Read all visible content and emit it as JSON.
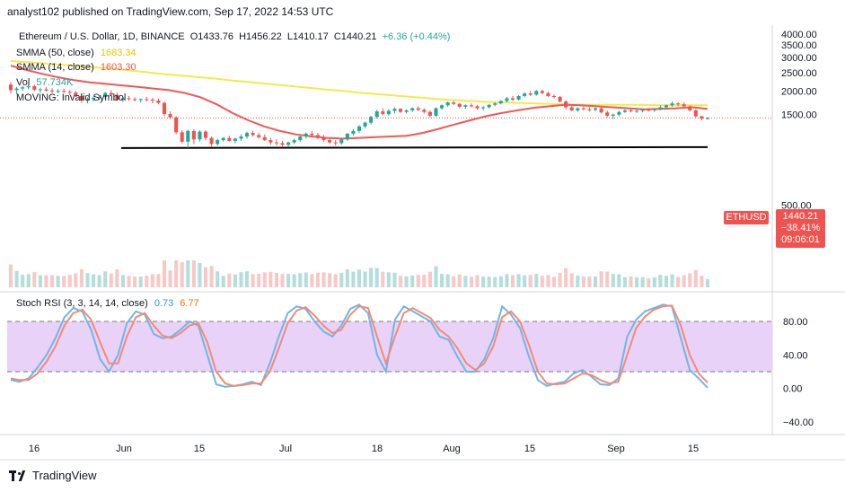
{
  "header": {
    "publisher": "analyst102 published on TradingView.com, Sep 17, 2022 14:53 UTC"
  },
  "legend": {
    "symbol": "Ethereum / U.S. Dollar, 1D, BINANCE",
    "open": "O1433.76",
    "high": "H1456.22",
    "low": "L1410.17",
    "close": "C1440.21",
    "change": "+6.36 (+0.44%)",
    "sma50_label": "SMMA (50, close)",
    "sma50_value": "1683.34",
    "sma14_label": "SMMA (14, close)",
    "sma14_value": "1603.30",
    "vol_label": "Vol",
    "vol_value": "57.734K",
    "moving_label": "MOVING: Invalid Symbol"
  },
  "price_tag": {
    "symbol": "ETHUSD",
    "price": "1440.21",
    "pct": "−38.41%",
    "timer": "09:06:01"
  },
  "stoch_legend": {
    "label": "Stoch RSI (3, 3, 14, 14, close)",
    "k": "0.73",
    "d": "6.77"
  },
  "footer": {
    "brand": "TradingView"
  },
  "colors": {
    "up": "#26a69a",
    "down": "#ef5350",
    "sma50": "#f5e94a",
    "sma14": "#f05858",
    "stoch_k": "#6fb6e8",
    "stoch_d": "#f28b76",
    "band": "#e9d2f7",
    "support": "#000000"
  },
  "chart_data": [
    {
      "type": "candlestick",
      "title": "Ethereum / U.S. Dollar, 1D, BINANCE",
      "x_tick_labels": [
        "16",
        "Jun",
        "15",
        "Jul",
        "18",
        "Aug",
        "15",
        "Sep",
        "15"
      ],
      "y_tick_labels": [
        "4000.00",
        "3500.00",
        "3000.00",
        "2500.00",
        "2000.00",
        "1500.00",
        "500.00"
      ],
      "ylim": [
        180,
        4450
      ],
      "y_scale": "log",
      "grid": false,
      "candles": [
        [
          2160,
          2230,
          1940,
          2020
        ],
        [
          2020,
          2100,
          1920,
          2060
        ],
        [
          2060,
          2130,
          2000,
          2090
        ],
        [
          2090,
          2180,
          2040,
          2120
        ],
        [
          2120,
          2160,
          1990,
          2030
        ],
        [
          2030,
          2080,
          1960,
          2040
        ],
        [
          2040,
          2100,
          1980,
          2010
        ],
        [
          2010,
          2070,
          1950,
          1990
        ],
        [
          1990,
          2050,
          1940,
          2000
        ],
        [
          2000,
          2060,
          1950,
          1980
        ],
        [
          1980,
          2020,
          1900,
          1960
        ],
        [
          1960,
          2000,
          1860,
          1880
        ],
        [
          1880,
          1920,
          1730,
          1780
        ],
        [
          1780,
          1850,
          1720,
          1810
        ],
        [
          1810,
          1880,
          1760,
          1840
        ],
        [
          1840,
          1900,
          1790,
          1860
        ],
        [
          1860,
          1980,
          1820,
          1950
        ],
        [
          1950,
          2020,
          1880,
          1910
        ],
        [
          1910,
          1960,
          1770,
          1800
        ],
        [
          1800,
          1860,
          1750,
          1830
        ],
        [
          1830,
          1880,
          1780,
          1810
        ],
        [
          1810,
          1850,
          1760,
          1790
        ],
        [
          1790,
          1830,
          1740,
          1810
        ],
        [
          1810,
          1860,
          1760,
          1800
        ],
        [
          1800,
          1840,
          1720,
          1780
        ],
        [
          1780,
          1820,
          1700,
          1730
        ],
        [
          1730,
          1760,
          1470,
          1510
        ],
        [
          1510,
          1560,
          1420,
          1450
        ],
        [
          1450,
          1470,
          1180,
          1210
        ],
        [
          1210,
          1240,
          1060,
          1080
        ],
        [
          1080,
          1250,
          1000,
          1230
        ],
        [
          1230,
          1250,
          1050,
          1110
        ],
        [
          1110,
          1240,
          1080,
          1220
        ],
        [
          1220,
          1240,
          1100,
          1130
        ],
        [
          1130,
          1150,
          1010,
          1050
        ],
        [
          1050,
          1120,
          1030,
          1100
        ],
        [
          1100,
          1140,
          1080,
          1130
        ],
        [
          1130,
          1160,
          1080,
          1090
        ],
        [
          1090,
          1130,
          1060,
          1120
        ],
        [
          1120,
          1180,
          1090,
          1150
        ],
        [
          1150,
          1220,
          1120,
          1200
        ],
        [
          1200,
          1230,
          1150,
          1170
        ],
        [
          1170,
          1200,
          1120,
          1140
        ],
        [
          1140,
          1180,
          1090,
          1100
        ],
        [
          1100,
          1130,
          1040,
          1070
        ],
        [
          1070,
          1110,
          1030,
          1060
        ],
        [
          1060,
          1090,
          1020,
          1040
        ],
        [
          1040,
          1080,
          1010,
          1070
        ],
        [
          1070,
          1120,
          1050,
          1100
        ],
        [
          1100,
          1160,
          1080,
          1150
        ],
        [
          1150,
          1210,
          1120,
          1190
        ],
        [
          1190,
          1230,
          1150,
          1170
        ],
        [
          1170,
          1200,
          1110,
          1130
        ],
        [
          1130,
          1170,
          1080,
          1100
        ],
        [
          1100,
          1130,
          1050,
          1070
        ],
        [
          1070,
          1100,
          1030,
          1060
        ],
        [
          1060,
          1120,
          1040,
          1110
        ],
        [
          1110,
          1200,
          1090,
          1190
        ],
        [
          1190,
          1260,
          1160,
          1230
        ],
        [
          1230,
          1320,
          1200,
          1300
        ],
        [
          1300,
          1380,
          1270,
          1360
        ],
        [
          1360,
          1480,
          1330,
          1460
        ],
        [
          1460,
          1590,
          1430,
          1560
        ],
        [
          1560,
          1620,
          1490,
          1510
        ],
        [
          1510,
          1600,
          1480,
          1570
        ],
        [
          1570,
          1640,
          1520,
          1610
        ],
        [
          1610,
          1620,
          1530,
          1550
        ],
        [
          1550,
          1600,
          1520,
          1580
        ],
        [
          1580,
          1640,
          1550,
          1620
        ],
        [
          1620,
          1660,
          1560,
          1590
        ],
        [
          1590,
          1620,
          1520,
          1550
        ],
        [
          1550,
          1580,
          1450,
          1480
        ],
        [
          1480,
          1640,
          1460,
          1620
        ],
        [
          1620,
          1700,
          1590,
          1680
        ],
        [
          1680,
          1760,
          1650,
          1740
        ],
        [
          1740,
          1770,
          1680,
          1710
        ],
        [
          1710,
          1730,
          1620,
          1650
        ],
        [
          1650,
          1700,
          1610,
          1680
        ],
        [
          1680,
          1720,
          1640,
          1660
        ],
        [
          1660,
          1690,
          1590,
          1620
        ],
        [
          1620,
          1660,
          1580,
          1640
        ],
        [
          1640,
          1700,
          1620,
          1690
        ],
        [
          1690,
          1740,
          1660,
          1720
        ],
        [
          1720,
          1790,
          1700,
          1770
        ],
        [
          1770,
          1860,
          1740,
          1830
        ],
        [
          1830,
          1880,
          1770,
          1800
        ],
        [
          1800,
          1900,
          1780,
          1880
        ],
        [
          1880,
          1960,
          1850,
          1940
        ],
        [
          1940,
          2000,
          1880,
          1910
        ],
        [
          1910,
          2020,
          1890,
          2000
        ],
        [
          2000,
          2030,
          1920,
          1950
        ],
        [
          1950,
          1980,
          1860,
          1880
        ],
        [
          1880,
          1920,
          1830,
          1860
        ],
        [
          1860,
          1880,
          1740,
          1760
        ],
        [
          1760,
          1790,
          1600,
          1640
        ],
        [
          1640,
          1680,
          1560,
          1580
        ],
        [
          1580,
          1640,
          1550,
          1620
        ],
        [
          1620,
          1660,
          1580,
          1600
        ],
        [
          1600,
          1640,
          1560,
          1590
        ],
        [
          1590,
          1640,
          1560,
          1620
        ],
        [
          1620,
          1660,
          1520,
          1540
        ],
        [
          1540,
          1580,
          1450,
          1480
        ],
        [
          1480,
          1520,
          1420,
          1500
        ],
        [
          1500,
          1570,
          1470,
          1550
        ],
        [
          1550,
          1600,
          1530,
          1580
        ],
        [
          1580,
          1620,
          1540,
          1560
        ],
        [
          1560,
          1600,
          1530,
          1570
        ],
        [
          1570,
          1610,
          1540,
          1590
        ],
        [
          1590,
          1620,
          1560,
          1580
        ],
        [
          1580,
          1620,
          1550,
          1600
        ],
        [
          1600,
          1680,
          1580,
          1640
        ],
        [
          1640,
          1700,
          1610,
          1680
        ],
        [
          1680,
          1760,
          1650,
          1720
        ],
        [
          1720,
          1740,
          1660,
          1700
        ],
        [
          1700,
          1740,
          1640,
          1660
        ],
        [
          1660,
          1680,
          1560,
          1580
        ],
        [
          1580,
          1600,
          1450,
          1470
        ],
        [
          1470,
          1480,
          1400,
          1430
        ],
        [
          1433.76,
          1456.22,
          1410.17,
          1440.21
        ]
      ],
      "sma50": [
        2880,
        2840,
        2800,
        2760,
        2720,
        2680,
        2640,
        2590,
        2540,
        2490,
        2440,
        2400,
        2360,
        2320,
        2270,
        2230,
        2190,
        2150,
        2110,
        2070,
        2030,
        2000,
        1960,
        1930,
        1900,
        1870,
        1840,
        1810,
        1790,
        1770,
        1750,
        1740,
        1730,
        1720,
        1710,
        1700,
        1690,
        1690,
        1690,
        1690,
        1690,
        1680,
        1680,
        1680,
        1680
      ],
      "sma14": [
        2720,
        2580,
        2460,
        2360,
        2280,
        2220,
        2180,
        2140,
        2100,
        2060,
        2020,
        1950,
        1850,
        1700,
        1530,
        1400,
        1300,
        1230,
        1180,
        1150,
        1130,
        1120,
        1130,
        1140,
        1150,
        1160,
        1200,
        1260,
        1330,
        1400,
        1470,
        1530,
        1580,
        1630,
        1660,
        1690,
        1680,
        1660,
        1640,
        1620,
        1600,
        1610,
        1620,
        1640,
        1610
      ],
      "support_level": 1000,
      "last_price": 1440.21
    },
    {
      "type": "line",
      "title": "Stoch RSI (3, 3, 14, 14, close)",
      "ylim": [
        -55,
        110
      ],
      "y_tick_labels": [
        "80.00",
        "40.00",
        "0.00",
        "−40.00"
      ],
      "band": [
        20,
        80
      ],
      "series": [
        {
          "name": "K",
          "values": [
            10,
            8,
            12,
            25,
            40,
            60,
            85,
            96,
            92,
            70,
            35,
            20,
            40,
            78,
            92,
            88,
            65,
            60,
            62,
            70,
            80,
            75,
            40,
            5,
            2,
            3,
            5,
            8,
            4,
            30,
            62,
            90,
            98,
            95,
            80,
            68,
            62,
            75,
            95,
            100,
            90,
            40,
            20,
            82,
            98,
            92,
            86,
            80,
            62,
            58,
            38,
            20,
            20,
            35,
            60,
            98,
            88,
            72,
            38,
            10,
            3,
            6,
            8,
            18,
            22,
            14,
            5,
            4,
            12,
            62,
            82,
            92,
            96,
            100,
            98,
            60,
            22,
            12,
            0.73
          ]
        },
        {
          "name": "D",
          "values": [
            12,
            10,
            10,
            18,
            32,
            50,
            75,
            90,
            94,
            82,
            55,
            30,
            30,
            62,
            85,
            90,
            75,
            63,
            60,
            66,
            75,
            78,
            55,
            20,
            6,
            3,
            4,
            6,
            6,
            20,
            48,
            78,
            93,
            97,
            87,
            75,
            66,
            70,
            88,
            98,
            96,
            62,
            30,
            62,
            90,
            96,
            90,
            84,
            70,
            62,
            48,
            30,
            22,
            30,
            50,
            85,
            92,
            80,
            52,
            20,
            6,
            5,
            6,
            12,
            18,
            16,
            10,
            6,
            8,
            40,
            72,
            86,
            94,
            98,
            99,
            75,
            40,
            18,
            6.77
          ]
        }
      ]
    }
  ]
}
